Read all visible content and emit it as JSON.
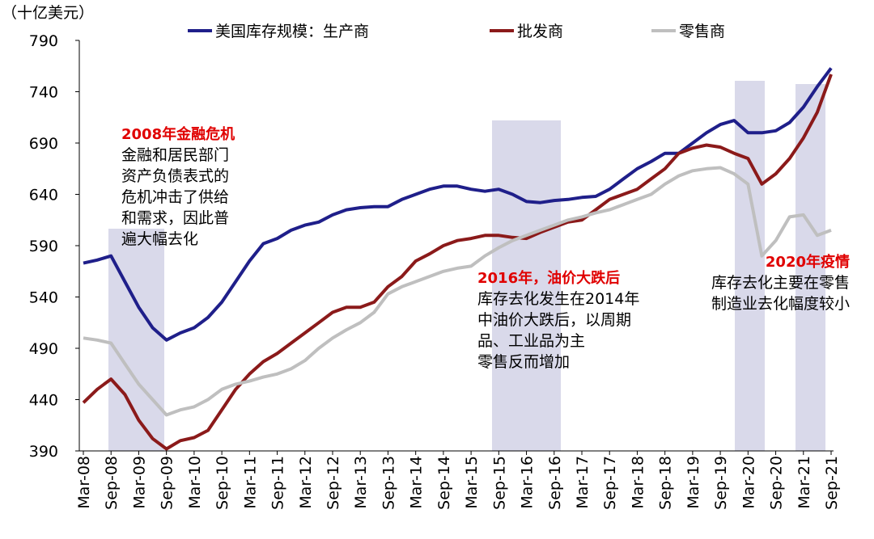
{
  "chart_data": {
    "type": "line",
    "y_label": "（十亿美元）",
    "categories": [
      "Mar-08",
      null,
      "Sep-08",
      null,
      "Mar-09",
      null,
      "Sep-09",
      null,
      "Mar-10",
      null,
      "Sep-10",
      null,
      "Mar-11",
      null,
      "Sep-11",
      null,
      "Mar-12",
      null,
      "Sep-12",
      null,
      "Mar-13",
      null,
      "Sep-13",
      null,
      "Mar-14",
      null,
      "Sep-14",
      null,
      "Mar-15",
      null,
      "Sep-15",
      null,
      "Mar-16",
      null,
      "Sep-16",
      null,
      "Mar-17",
      null,
      "Sep-17",
      null,
      "Mar-18",
      null,
      "Sep-18",
      null,
      "Mar-19",
      null,
      "Sep-19",
      null,
      "Mar-20",
      null,
      "Sep-20",
      null,
      "Mar-21",
      null,
      "Sep-21"
    ],
    "series": [
      {
        "name": "美国库存规模：生产商",
        "color": "#1f1f8a",
        "values": [
          573,
          576,
          580,
          555,
          530,
          510,
          498,
          505,
          510,
          520,
          535,
          555,
          575,
          592,
          597,
          605,
          610,
          613,
          620,
          625,
          627,
          628,
          628,
          635,
          640,
          645,
          648,
          648,
          645,
          643,
          645,
          640,
          633,
          632,
          634,
          635,
          637,
          638,
          645,
          655,
          665,
          672,
          680,
          680,
          690,
          700,
          708,
          712,
          700,
          700,
          702,
          710,
          725,
          745,
          763
        ]
      },
      {
        "name": "批发商",
        "color": "#8b1a1a",
        "values": [
          437,
          450,
          460,
          445,
          420,
          402,
          392,
          400,
          403,
          410,
          430,
          450,
          465,
          477,
          485,
          495,
          505,
          515,
          525,
          530,
          530,
          535,
          550,
          560,
          575,
          582,
          590,
          595,
          597,
          600,
          600,
          598,
          597,
          603,
          608,
          613,
          615,
          625,
          635,
          640,
          645,
          655,
          665,
          680,
          685,
          688,
          686,
          680,
          675,
          650,
          660,
          675,
          695,
          720,
          757
        ]
      },
      {
        "name": "零售商",
        "color": "#bfbfbf",
        "values": [
          500,
          498,
          495,
          475,
          455,
          440,
          425,
          430,
          433,
          440,
          450,
          455,
          458,
          462,
          465,
          470,
          478,
          490,
          500,
          508,
          515,
          525,
          543,
          550,
          555,
          560,
          565,
          568,
          570,
          580,
          588,
          595,
          600,
          605,
          610,
          615,
          618,
          622,
          625,
          630,
          635,
          640,
          650,
          658,
          663,
          665,
          666,
          660,
          650,
          580,
          595,
          618,
          620,
          600,
          605
        ]
      }
    ],
    "ylim": [
      390,
      790
    ],
    "yticks": [
      390,
      440,
      490,
      540,
      590,
      640,
      690,
      740,
      790
    ],
    "annotations": [
      {
        "title": "2008年金融危机",
        "lines": [
          "金融和居民部门",
          "资产负债表式的",
          "危机冲击了供给",
          "和需求，因此普",
          "遍大幅去化"
        ]
      },
      {
        "title": "2016年，油价大跌后",
        "lines": [
          "库存去化发生在2014年",
          "中油价大跌后，以周期",
          "品、工业品为主",
          "零售反而增加"
        ]
      },
      {
        "title": "2020年疫情",
        "lines": [
          "库存去化主要在零售",
          "制造业去化幅度较小"
        ]
      }
    ]
  }
}
